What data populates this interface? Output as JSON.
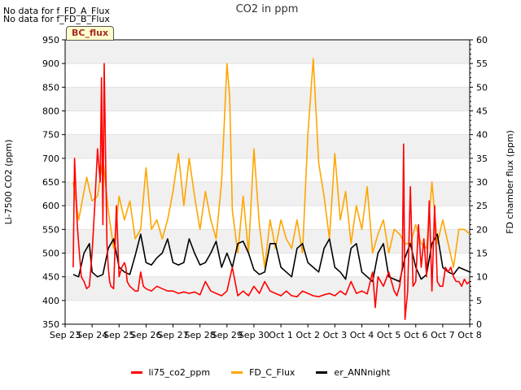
{
  "notes": [
    "No data for f_FD_A_Flux",
    "No data for f_FD_B_Flux"
  ],
  "badge": "BC_flux",
  "chart_data": {
    "type": "line",
    "title": "CO2 in ppm",
    "ylabel": "Li-7500 CO2 (ppm)",
    "y2label": "FD chamber flux (ppm)",
    "ylim": [
      350,
      950
    ],
    "y2lim": [
      0,
      60
    ],
    "yticks": [
      350,
      400,
      450,
      500,
      550,
      600,
      650,
      700,
      750,
      800,
      850,
      900,
      950
    ],
    "y2ticks": [
      0,
      5,
      10,
      15,
      20,
      25,
      30,
      35,
      40,
      45,
      50,
      55,
      60
    ],
    "xlim": [
      0,
      15
    ],
    "xticks": [
      0,
      1,
      2,
      3,
      4,
      5,
      6,
      7,
      8,
      9,
      10,
      11,
      12,
      13,
      14,
      15
    ],
    "xticklabels": [
      "Sep 23",
      "Sep 24",
      "Sep 25",
      "Sep 26",
      "Sep 27",
      "Sep 28",
      "Sep 29",
      "Sep 30",
      "Oct 1",
      "Oct 2",
      "Oct 3",
      "Oct 4",
      "Oct 5",
      "Oct 6",
      "Oct 7",
      "Oct 8"
    ],
    "grid": "horizontal-bands",
    "legend_position": "bottom-center",
    "series": [
      {
        "name": "li75_co2_ppm",
        "color": "#ff0000",
        "axis": "left",
        "x": [
          0.3,
          0.35,
          0.45,
          0.5,
          0.6,
          0.7,
          0.8,
          0.9,
          1.0,
          1.1,
          1.2,
          1.3,
          1.35,
          1.4,
          1.45,
          1.5,
          1.55,
          1.6,
          1.65,
          1.7,
          1.8,
          1.9,
          2.0,
          2.1,
          2.2,
          2.25,
          2.3,
          2.4,
          2.5,
          2.6,
          2.7,
          2.8,
          2.9,
          3.0,
          3.2,
          3.4,
          3.6,
          3.8,
          4.0,
          4.2,
          4.4,
          4.6,
          4.8,
          5.0,
          5.2,
          5.4,
          5.6,
          5.8,
          6.0,
          6.2,
          6.4,
          6.6,
          6.8,
          7.0,
          7.2,
          7.4,
          7.6,
          7.8,
          8.0,
          8.2,
          8.4,
          8.6,
          8.8,
          9.0,
          9.2,
          9.4,
          9.6,
          9.8,
          10.0,
          10.2,
          10.4,
          10.6,
          10.8,
          11.0,
          11.2,
          11.4,
          11.5,
          11.6,
          11.8,
          12.0,
          12.1,
          12.2,
          12.3,
          12.4,
          12.5,
          12.55,
          12.6,
          12.7,
          12.8,
          12.9,
          13.0,
          13.1,
          13.2,
          13.3,
          13.4,
          13.5,
          13.6,
          13.7,
          13.8,
          13.9,
          14.0,
          14.1,
          14.2,
          14.3,
          14.4,
          14.5,
          14.6,
          14.7,
          14.8,
          14.9,
          15.0
        ],
        "values": [
          470,
          700,
          560,
          520,
          450,
          440,
          425,
          430,
          500,
          600,
          720,
          650,
          870,
          560,
          900,
          700,
          520,
          470,
          440,
          430,
          425,
          600,
          450,
          470,
          480,
          470,
          440,
          430,
          425,
          420,
          420,
          460,
          430,
          425,
          420,
          430,
          425,
          420,
          420,
          415,
          418,
          415,
          418,
          412,
          440,
          420,
          415,
          410,
          420,
          470,
          410,
          420,
          410,
          430,
          415,
          440,
          420,
          415,
          410,
          420,
          410,
          408,
          420,
          415,
          410,
          408,
          412,
          415,
          410,
          420,
          412,
          440,
          415,
          420,
          414,
          460,
          385,
          450,
          430,
          460,
          440,
          420,
          410,
          430,
          470,
          730,
          360,
          420,
          640,
          430,
          440,
          560,
          470,
          530,
          450,
          610,
          420,
          600,
          440,
          430,
          430,
          470,
          460,
          470,
          450,
          440,
          440,
          430,
          445,
          435,
          440
        ]
      },
      {
        "name": "FD_C_Flux",
        "color": "#ffa500",
        "axis": "right",
        "x": [
          0.3,
          0.5,
          0.8,
          1.0,
          1.2,
          1.4,
          1.6,
          1.8,
          2.0,
          2.2,
          2.4,
          2.6,
          2.8,
          3.0,
          3.2,
          3.4,
          3.6,
          3.8,
          4.0,
          4.2,
          4.4,
          4.6,
          4.8,
          5.0,
          5.2,
          5.4,
          5.6,
          5.8,
          6.0,
          6.1,
          6.2,
          6.4,
          6.6,
          6.8,
          7.0,
          7.2,
          7.4,
          7.6,
          7.8,
          8.0,
          8.2,
          8.4,
          8.6,
          8.8,
          9.0,
          9.2,
          9.4,
          9.6,
          9.8,
          10.0,
          10.2,
          10.4,
          10.6,
          10.8,
          11.0,
          11.2,
          11.4,
          11.6,
          11.8,
          12.0,
          12.2,
          12.4,
          12.6,
          12.8,
          13.0,
          13.2,
          13.4,
          13.6,
          13.8,
          14.0,
          14.2,
          14.4,
          14.6,
          14.8,
          15.0
        ],
        "values": [
          30,
          22,
          31,
          26,
          27,
          35,
          24,
          16,
          27,
          22,
          26,
          18,
          20,
          33,
          20,
          22,
          18,
          22,
          28,
          36,
          25,
          35,
          27,
          20,
          28,
          22,
          18,
          30,
          55,
          48,
          24,
          15,
          27,
          15,
          37,
          21,
          12,
          22,
          16,
          22,
          18,
          16,
          22,
          15,
          40,
          56,
          34,
          27,
          18,
          36,
          22,
          28,
          17,
          25,
          20,
          29,
          15,
          19,
          22,
          15,
          20,
          19,
          17,
          17,
          21,
          17,
          16,
          30,
          17,
          22,
          17,
          12,
          20,
          20,
          19
        ]
      },
      {
        "name": "er_ANNnight",
        "color": "#000000",
        "axis": "left",
        "x": [
          0.3,
          0.5,
          0.7,
          0.9,
          1.0,
          1.1,
          1.2,
          1.4,
          1.6,
          1.8,
          2.0,
          2.2,
          2.4,
          2.6,
          2.8,
          3.0,
          3.2,
          3.4,
          3.6,
          3.8,
          4.0,
          4.2,
          4.4,
          4.6,
          4.8,
          5.0,
          5.2,
          5.4,
          5.6,
          5.8,
          6.0,
          6.2,
          6.4,
          6.6,
          6.8,
          7.0,
          7.2,
          7.4,
          7.6,
          7.8,
          8.0,
          8.2,
          8.4,
          8.6,
          8.8,
          9.0,
          9.2,
          9.4,
          9.6,
          9.8,
          10.0,
          10.2,
          10.4,
          10.6,
          10.8,
          11.0,
          11.2,
          11.4,
          11.6,
          11.8,
          12.0,
          12.2,
          12.4,
          12.6,
          12.8,
          13.0,
          13.2,
          13.4,
          13.6,
          13.8,
          14.0,
          14.2,
          14.4,
          14.6,
          14.8,
          15.0
        ],
        "values": [
          455,
          450,
          500,
          520,
          460,
          455,
          450,
          455,
          510,
          530,
          470,
          460,
          455,
          495,
          540,
          480,
          475,
          490,
          500,
          530,
          480,
          475,
          480,
          530,
          500,
          475,
          480,
          500,
          525,
          470,
          500,
          470,
          520,
          525,
          500,
          465,
          455,
          460,
          520,
          520,
          470,
          460,
          450,
          510,
          520,
          480,
          470,
          460,
          510,
          530,
          470,
          460,
          445,
          510,
          520,
          460,
          450,
          440,
          500,
          520,
          450,
          445,
          440,
          490,
          520,
          470,
          445,
          455,
          520,
          540,
          470,
          460,
          455,
          470,
          465,
          460
        ]
      }
    ]
  }
}
